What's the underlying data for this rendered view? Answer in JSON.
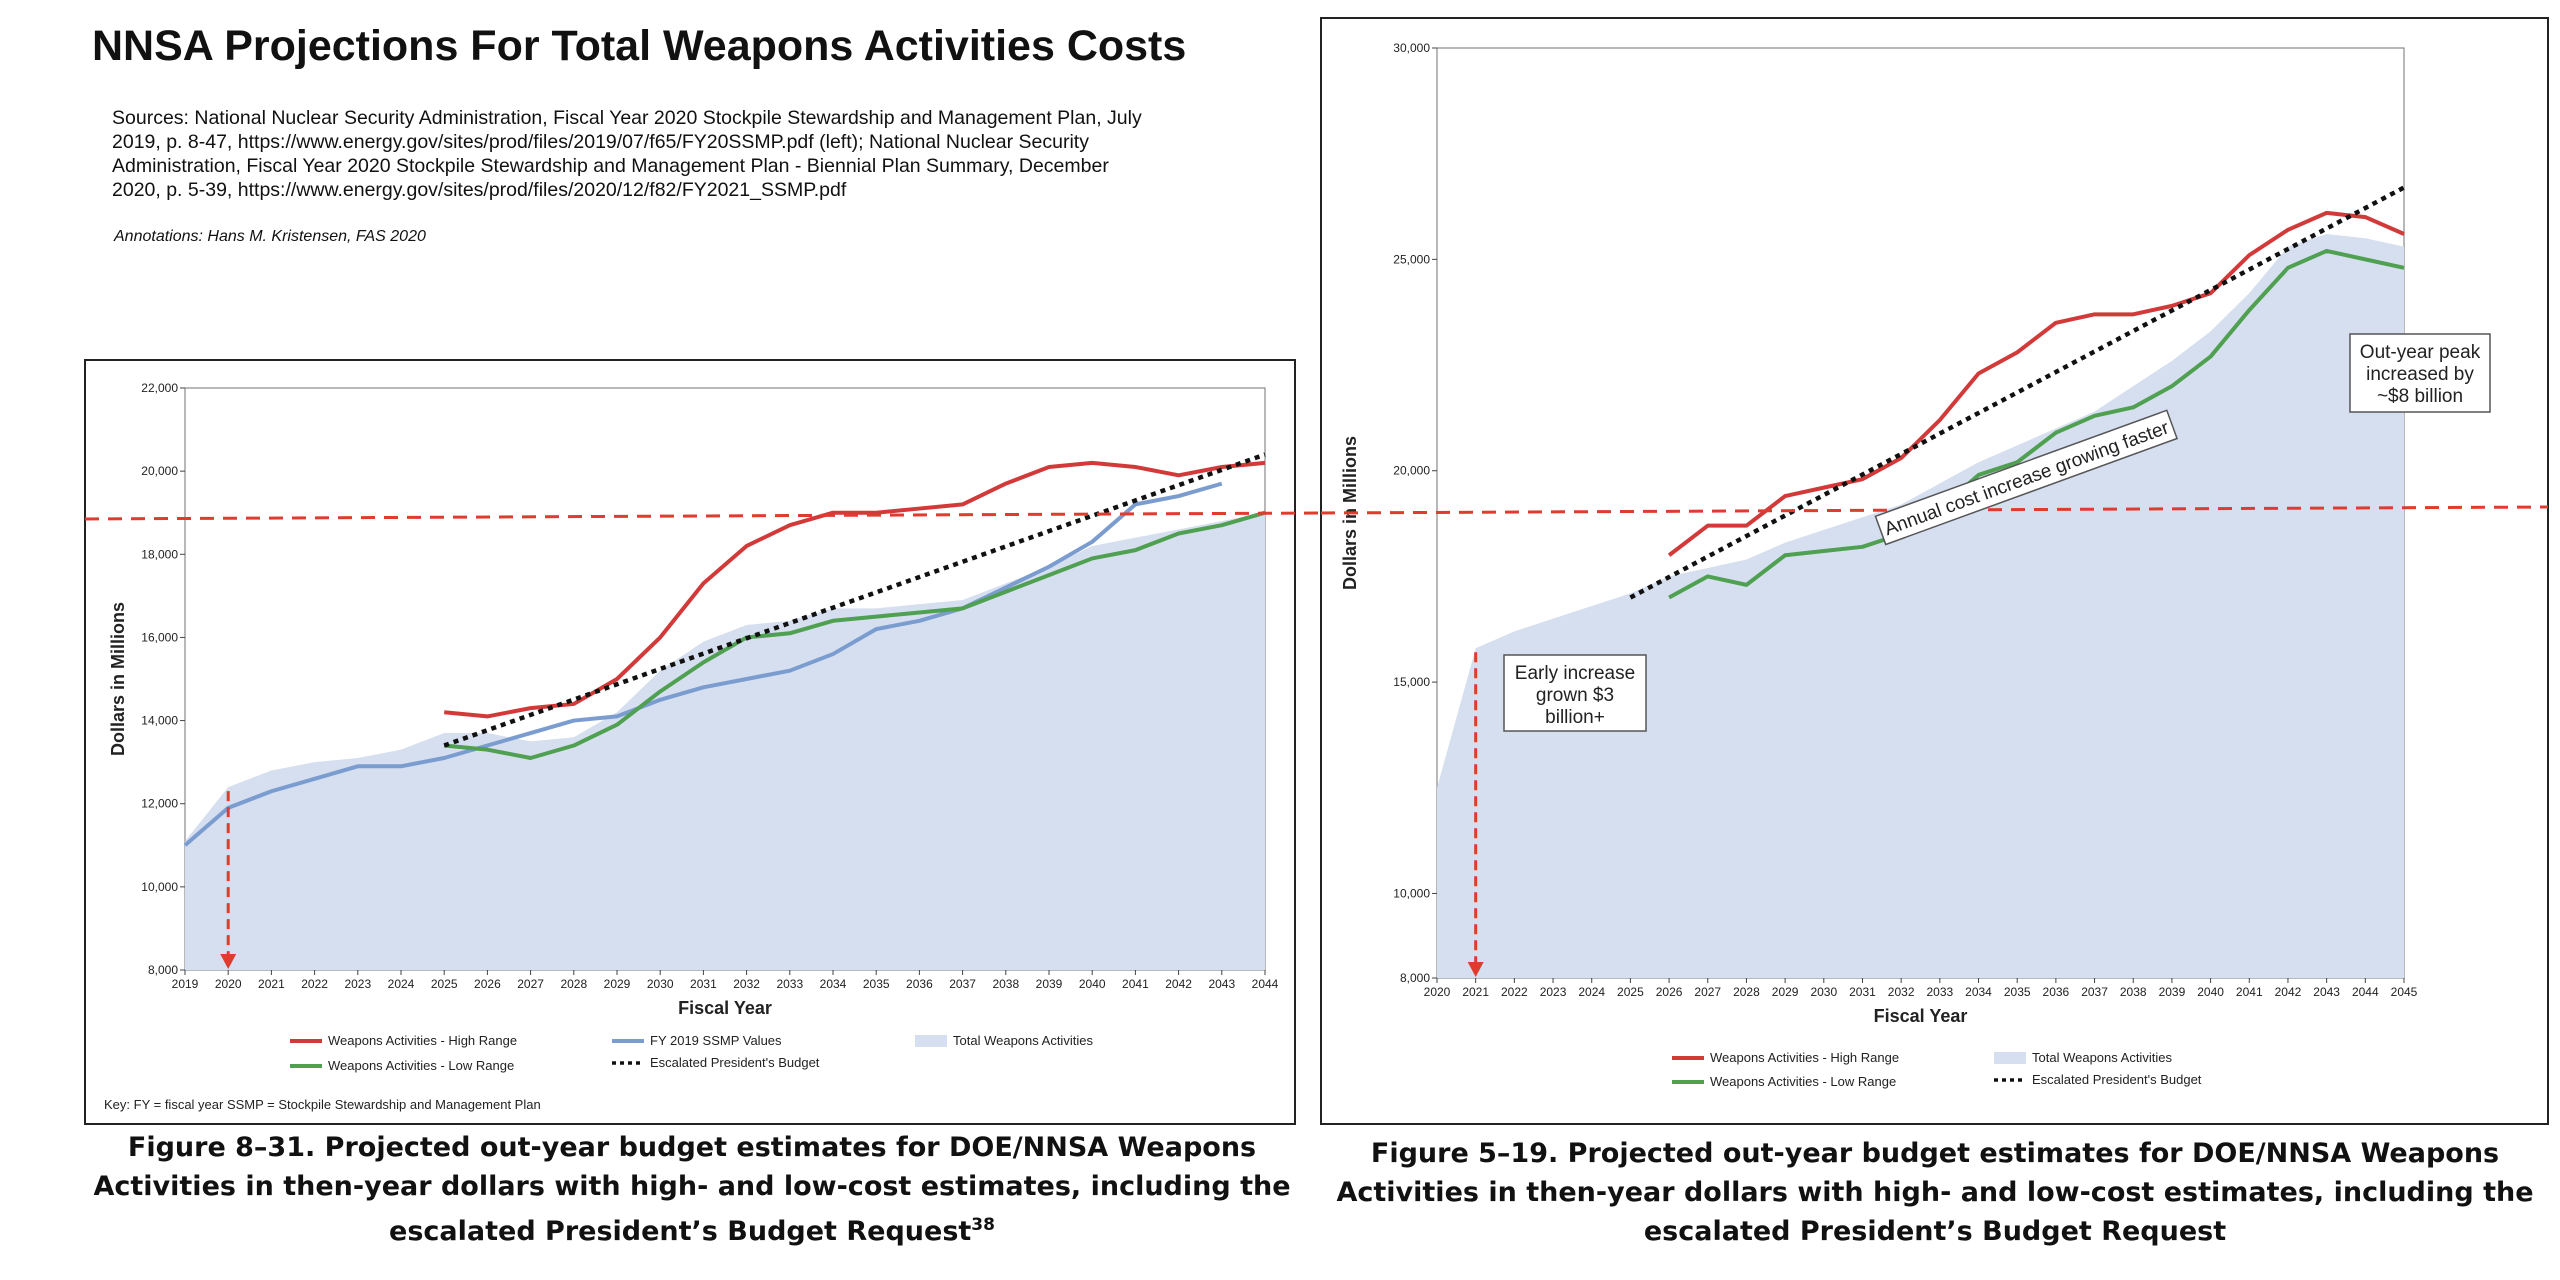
{
  "page": {
    "title": "NNSA Projections For Total Weapons Activities Costs",
    "sources": "Sources: National Nuclear Security Administration, Fiscal Year 2020 Stockpile Stewardship and Management Plan, July 2019, p. 8-47, https://www.energy.gov/sites/prod/files/2019/07/f65/FY20SSMP.pdf (left); National Nuclear Security Administration, Fiscal Year 2020 Stockpile Stewardship and Management Plan - Biennial Plan Summary, December 2020, p. 5-39, https://www.energy.gov/sites/prod/files/2020/12/f82/FY2021_SSMP.pdf",
    "annotations_credit": "Annotations: Hans M. Kristensen, FAS 2020",
    "caption_left": "Figure 8–31.  Projected out-year budget estimates for DOE/NNSA Weapons Activities in then-year dollars with high- and low-cost estimates, including the escalated President’s Budget Request",
    "caption_left_sup": "38",
    "caption_right": "Figure 5–19.  Projected out-year budget estimates for DOE/NNSA Weapons Activities in then-year dollars with high- and low-cost estimates, including the escalated President’s Budget Request"
  },
  "colors": {
    "high": "#d23a3a",
    "low": "#4fa050",
    "ssmp": "#7a9ccf",
    "total": "#d6dff0",
    "budget": "#111111",
    "annotation": "#e03b2f"
  },
  "chart_data": [
    {
      "type": "line",
      "xlabel": "Fiscal Year",
      "ylabel": "Dollars in Millions",
      "ylim": [
        8000,
        22000
      ],
      "y_ticks": [
        8000,
        10000,
        12000,
        14000,
        16000,
        18000,
        20000,
        22000
      ],
      "y_tick_labels": [
        "8,000",
        "10,000",
        "12,000",
        "14,000",
        "16,000",
        "18,000",
        "20,000",
        "22,000"
      ],
      "x": [
        2019,
        2020,
        2021,
        2022,
        2023,
        2024,
        2025,
        2026,
        2027,
        2028,
        2029,
        2030,
        2031,
        2032,
        2033,
        2034,
        2035,
        2036,
        2037,
        2038,
        2039,
        2040,
        2041,
        2042,
        2043,
        2044
      ],
      "legend": [
        {
          "key": "high",
          "label": "Weapons Activities - High Range",
          "style": "line"
        },
        {
          "key": "ssmp",
          "label": "FY 2019 SSMP Values",
          "style": "line"
        },
        {
          "key": "total",
          "label": "Total Weapons Activities",
          "style": "area"
        },
        {
          "key": "low",
          "label": "Weapons Activities - Low Range",
          "style": "line"
        },
        {
          "key": "budget",
          "label": "Escalated President's Budget",
          "style": "dotted"
        }
      ],
      "key_note": "Key:  FY = fiscal year     SSMP = Stockpile Stewardship and Management Plan",
      "series": [
        {
          "key": "total",
          "x": [
            2019,
            2020,
            2021,
            2022,
            2023,
            2024,
            2025,
            2026,
            2027,
            2028,
            2029,
            2030,
            2031,
            2032,
            2033,
            2034,
            2035,
            2036,
            2037,
            2038,
            2039,
            2040,
            2041,
            2042,
            2043,
            2044
          ],
          "values": [
            11100,
            12400,
            12800,
            13000,
            13100,
            13300,
            13700,
            13700,
            13500,
            13600,
            14200,
            15200,
            15900,
            16300,
            16400,
            16700,
            16700,
            16800,
            16900,
            17300,
            17700,
            18200,
            18400,
            18600,
            18800,
            19000
          ]
        },
        {
          "key": "high",
          "x": [
            2025,
            2026,
            2027,
            2028,
            2029,
            2030,
            2031,
            2032,
            2033,
            2034,
            2035,
            2036,
            2037,
            2038,
            2039,
            2040,
            2041,
            2042,
            2043,
            2044
          ],
          "values": [
            14200,
            14100,
            14300,
            14400,
            15000,
            16000,
            17300,
            18200,
            18700,
            19000,
            19000,
            19100,
            19200,
            19700,
            20100,
            20200,
            20100,
            19900,
            20100,
            20200
          ]
        },
        {
          "key": "low",
          "x": [
            2025,
            2026,
            2027,
            2028,
            2029,
            2030,
            2031,
            2032,
            2033,
            2034,
            2035,
            2036,
            2037,
            2038,
            2039,
            2040,
            2041,
            2042,
            2043,
            2044
          ],
          "values": [
            13400,
            13300,
            13100,
            13400,
            13900,
            14700,
            15400,
            16000,
            16100,
            16400,
            16500,
            16600,
            16700,
            17100,
            17500,
            17900,
            18100,
            18500,
            18700,
            19000
          ]
        },
        {
          "key": "ssmp",
          "x": [
            2019,
            2020,
            2021,
            2022,
            2023,
            2024,
            2025,
            2026,
            2027,
            2028,
            2029,
            2030,
            2031,
            2032,
            2033,
            2034,
            2035,
            2036,
            2037,
            2038,
            2039,
            2040,
            2041,
            2042,
            2043
          ],
          "values": [
            11000,
            11900,
            12300,
            12600,
            12900,
            12900,
            13100,
            13400,
            13700,
            14000,
            14100,
            14500,
            14800,
            15000,
            15200,
            15600,
            16200,
            16400,
            16700,
            17200,
            17700,
            18300,
            19200,
            19400,
            19700
          ]
        },
        {
          "key": "budget",
          "x": [
            2025,
            2044
          ],
          "values": [
            13400,
            20400
          ]
        }
      ],
      "annotations": {
        "ref_line_value": 18850,
        "arrow_x": 2020,
        "arrow_from": 12400,
        "arrow_to": 8000
      }
    },
    {
      "type": "line",
      "xlabel": "Fiscal Year",
      "ylabel": "Dollars in Millions",
      "ylim": [
        8000,
        30000
      ],
      "y_ticks": [
        8000,
        10000,
        15000,
        20000,
        25000,
        30000
      ],
      "y_tick_labels": [
        "8,000",
        "10,000",
        "15,000",
        "20,000",
        "25,000",
        "30,000"
      ],
      "x": [
        2020,
        2021,
        2022,
        2023,
        2024,
        2025,
        2026,
        2027,
        2028,
        2029,
        2030,
        2031,
        2032,
        2033,
        2034,
        2035,
        2036,
        2037,
        2038,
        2039,
        2040,
        2041,
        2042,
        2043,
        2044,
        2045
      ],
      "legend": [
        {
          "key": "high",
          "label": "Weapons Activities - High Range",
          "style": "line"
        },
        {
          "key": "total",
          "label": "Total Weapons Activities",
          "style": "area"
        },
        {
          "key": "low",
          "label": "Weapons Activities - Low Range",
          "style": "line"
        },
        {
          "key": "budget",
          "label": "Escalated President's Budget",
          "style": "dotted"
        }
      ],
      "series": [
        {
          "key": "total",
          "x": [
            2020,
            2021,
            2022,
            2023,
            2024,
            2025,
            2026,
            2027,
            2028,
            2029,
            2030,
            2031,
            2032,
            2033,
            2034,
            2035,
            2036,
            2037,
            2038,
            2039,
            2040,
            2041,
            2042,
            2043,
            2044,
            2045
          ],
          "values": [
            12500,
            15800,
            16200,
            16500,
            16800,
            17100,
            17500,
            17700,
            17900,
            18300,
            18600,
            18900,
            19200,
            19700,
            20200,
            20600,
            21000,
            21400,
            22000,
            22600,
            23300,
            24200,
            25300,
            25600,
            25500,
            25300
          ]
        },
        {
          "key": "high",
          "x": [
            2026,
            2027,
            2028,
            2029,
            2030,
            2031,
            2032,
            2033,
            2034,
            2035,
            2036,
            2037,
            2038,
            2039,
            2040,
            2041,
            2042,
            2043,
            2044,
            2045
          ],
          "values": [
            18000,
            18700,
            18700,
            19400,
            19600,
            19800,
            20300,
            21200,
            22300,
            22800,
            23500,
            23700,
            23700,
            23900,
            24200,
            25100,
            25700,
            26100,
            26000,
            25600
          ]
        },
        {
          "key": "low",
          "x": [
            2026,
            2027,
            2028,
            2029,
            2030,
            2031,
            2032,
            2033,
            2034,
            2035,
            2036,
            2037,
            2038,
            2039,
            2040,
            2041,
            2042,
            2043,
            2044,
            2045
          ],
          "values": [
            17000,
            17500,
            17300,
            18000,
            18100,
            18200,
            18500,
            19100,
            19900,
            20200,
            20900,
            21300,
            21500,
            22000,
            22700,
            23800,
            24800,
            25200,
            25000,
            24800
          ]
        },
        {
          "key": "budget",
          "x": [
            2025,
            2045
          ],
          "values": [
            17000,
            26700
          ]
        }
      ],
      "annotations": {
        "early": "Early increase grown $3 billion+",
        "trend": "Annual cost increase growing faster",
        "peak": "Out-year peak increased by ~$8 billion",
        "ref_line_value": 19000,
        "arrow_x": 2021,
        "arrow_from": 15800,
        "arrow_to": 8000
      }
    }
  ]
}
